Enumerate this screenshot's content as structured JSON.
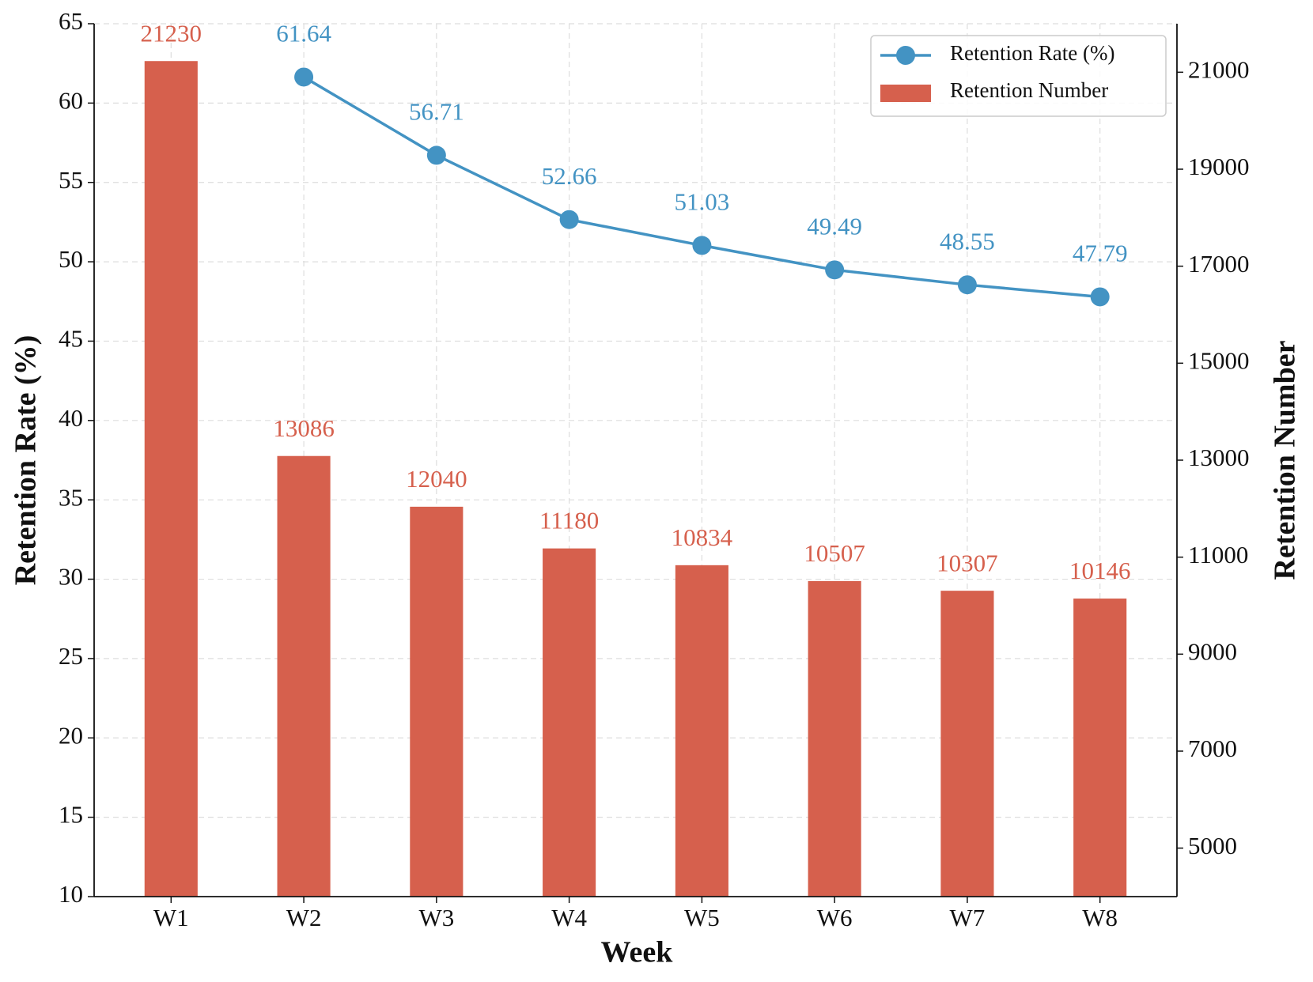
{
  "chart_data": {
    "type": "bar_line",
    "xlabel": "Week",
    "ylabel": "Retention Rate (%)",
    "y2label": "Retention Number",
    "categories": [
      "W1",
      "W2",
      "W3",
      "W4",
      "W5",
      "W6",
      "W7",
      "W8"
    ],
    "series": [
      {
        "name": "Retention Rate (%)",
        "type": "line",
        "color": "#4393c3",
        "axis": "y",
        "values": [
          null,
          61.64,
          56.71,
          52.66,
          51.03,
          49.49,
          48.55,
          47.79
        ]
      },
      {
        "name": "Retention Number",
        "type": "bar",
        "color": "#d6604d",
        "axis": "y2",
        "values": [
          21230,
          13086,
          12040,
          11180,
          10834,
          10507,
          10307,
          10146
        ]
      }
    ],
    "ylim": [
      10,
      65
    ],
    "yticks": [
      10,
      15,
      20,
      25,
      30,
      35,
      40,
      45,
      50,
      55,
      60,
      65
    ],
    "y2lim": [
      4000,
      22000
    ],
    "y2ticks": [
      5000,
      7000,
      9000,
      11000,
      13000,
      15000,
      17000,
      19000,
      21000
    ],
    "grid": true,
    "legend": "upper right"
  }
}
